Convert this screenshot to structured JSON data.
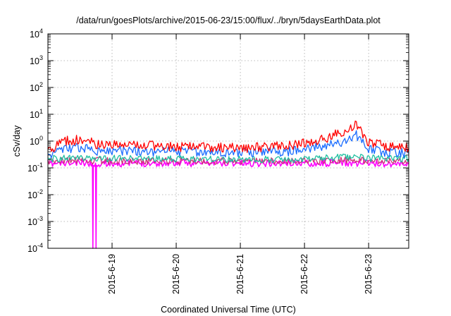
{
  "chart_data": {
    "type": "line",
    "title": "/data/run/goesPlots/archive/2015-06-23/15:00/flux/../bryn/5daysEarthData.plot",
    "xlabel": "Coordinated Universal Time (UTC)",
    "ylabel": "cSv/day",
    "y_scale": "log",
    "ylim": [
      0.0001,
      10000
    ],
    "y_ticks": [
      {
        "base": "10",
        "exp": "-4",
        "value": 0.0001
      },
      {
        "base": "10",
        "exp": "-3",
        "value": 0.001
      },
      {
        "base": "10",
        "exp": "-2",
        "value": 0.01
      },
      {
        "base": "10",
        "exp": "-1",
        "value": 0.1
      },
      {
        "base": "10",
        "exp": "0",
        "value": 1
      },
      {
        "base": "10",
        "exp": "1",
        "value": 10
      },
      {
        "base": "10",
        "exp": "2",
        "value": 100
      },
      {
        "base": "10",
        "exp": "3",
        "value": 1000
      },
      {
        "base": "10",
        "exp": "4",
        "value": 10000
      }
    ],
    "xlim": [
      "2015-06-18T00:00",
      "2015-06-23T15:00"
    ],
    "x_ticks": [
      "2015-6-19",
      "2015-6-20",
      "2015-6-21",
      "2015-6-22",
      "2015-6-23"
    ],
    "grid": true,
    "series": [
      {
        "color": "#ff0000",
        "x": [
          "2015-06-18T00:00",
          "2015-06-18T06:00",
          "2015-06-18T12:00",
          "2015-06-18T18:00",
          "2015-06-19T00:00",
          "2015-06-19T12:00",
          "2015-06-20T00:00",
          "2015-06-20T12:00",
          "2015-06-21T00:00",
          "2015-06-21T12:00",
          "2015-06-21T18:00",
          "2015-06-22T00:00",
          "2015-06-22T06:00",
          "2015-06-22T09:00",
          "2015-06-22T12:00",
          "2015-06-22T16:00",
          "2015-06-22T19:00",
          "2015-06-22T21:00",
          "2015-06-23T00:00",
          "2015-06-23T06:00",
          "2015-06-23T15:00"
        ],
        "y": [
          0.4,
          1.0,
          1.1,
          0.8,
          0.75,
          0.7,
          0.6,
          0.6,
          0.55,
          0.6,
          0.65,
          0.8,
          1.1,
          1.4,
          1.8,
          2.3,
          4.0,
          2.5,
          0.9,
          0.65,
          0.55
        ]
      },
      {
        "color": "#1a6cff",
        "x": [
          "2015-06-18T00:00",
          "2015-06-18T06:00",
          "2015-06-18T12:00",
          "2015-06-18T18:00",
          "2015-06-19T00:00",
          "2015-06-19T12:00",
          "2015-06-20T00:00",
          "2015-06-20T12:00",
          "2015-06-21T00:00",
          "2015-06-21T12:00",
          "2015-06-21T18:00",
          "2015-06-22T00:00",
          "2015-06-22T06:00",
          "2015-06-22T09:00",
          "2015-06-22T12:00",
          "2015-06-22T16:00",
          "2015-06-22T19:00",
          "2015-06-22T21:00",
          "2015-06-23T00:00",
          "2015-06-23T06:00",
          "2015-06-23T15:00"
        ],
        "y": [
          0.3,
          0.5,
          0.55,
          0.45,
          0.42,
          0.42,
          0.4,
          0.4,
          0.38,
          0.4,
          0.42,
          0.5,
          0.6,
          0.75,
          0.85,
          1.0,
          1.8,
          1.1,
          0.5,
          0.4,
          0.35
        ]
      },
      {
        "color": "#20c0a0",
        "x": [
          "2015-06-18T00:00",
          "2015-06-18T12:00",
          "2015-06-19T00:00",
          "2015-06-19T12:00",
          "2015-06-20T00:00",
          "2015-06-20T12:00",
          "2015-06-21T00:00",
          "2015-06-21T12:00",
          "2015-06-22T00:00",
          "2015-06-22T12:00",
          "2015-06-22T19:00",
          "2015-06-23T00:00",
          "2015-06-23T15:00"
        ],
        "y": [
          0.22,
          0.23,
          0.22,
          0.22,
          0.21,
          0.21,
          0.21,
          0.21,
          0.22,
          0.24,
          0.26,
          0.23,
          0.22
        ]
      },
      {
        "color": "#cc3377",
        "x": [
          "2015-06-18T00:00",
          "2015-06-18T12:00",
          "2015-06-19T00:00",
          "2015-06-19T12:00",
          "2015-06-20T00:00",
          "2015-06-20T12:00",
          "2015-06-21T00:00",
          "2015-06-21T12:00",
          "2015-06-22T00:00",
          "2015-06-22T12:00",
          "2015-06-22T19:00",
          "2015-06-23T00:00",
          "2015-06-23T15:00"
        ],
        "y": [
          0.18,
          0.19,
          0.18,
          0.18,
          0.18,
          0.18,
          0.18,
          0.18,
          0.18,
          0.19,
          0.2,
          0.19,
          0.18
        ]
      },
      {
        "color": "#ff00ff",
        "x": [
          "2015-06-18T00:00",
          "2015-06-18T12:00",
          "2015-06-18T16:40",
          "2015-06-18T16:50",
          "2015-06-18T17:00",
          "2015-06-18T17:50",
          "2015-06-18T18:00",
          "2015-06-18T18:10",
          "2015-06-19T00:00",
          "2015-06-19T12:00",
          "2015-06-20T00:00",
          "2015-06-20T12:00",
          "2015-06-21T00:00",
          "2015-06-21T12:00",
          "2015-06-22T00:00",
          "2015-06-22T12:00",
          "2015-06-23T00:00",
          "2015-06-23T15:00"
        ],
        "y": [
          0.14,
          0.15,
          0.15,
          0.0001,
          0.15,
          0.15,
          0.0001,
          0.15,
          0.15,
          0.15,
          0.15,
          0.15,
          0.15,
          0.15,
          0.15,
          0.15,
          0.15,
          0.14
        ]
      }
    ]
  }
}
